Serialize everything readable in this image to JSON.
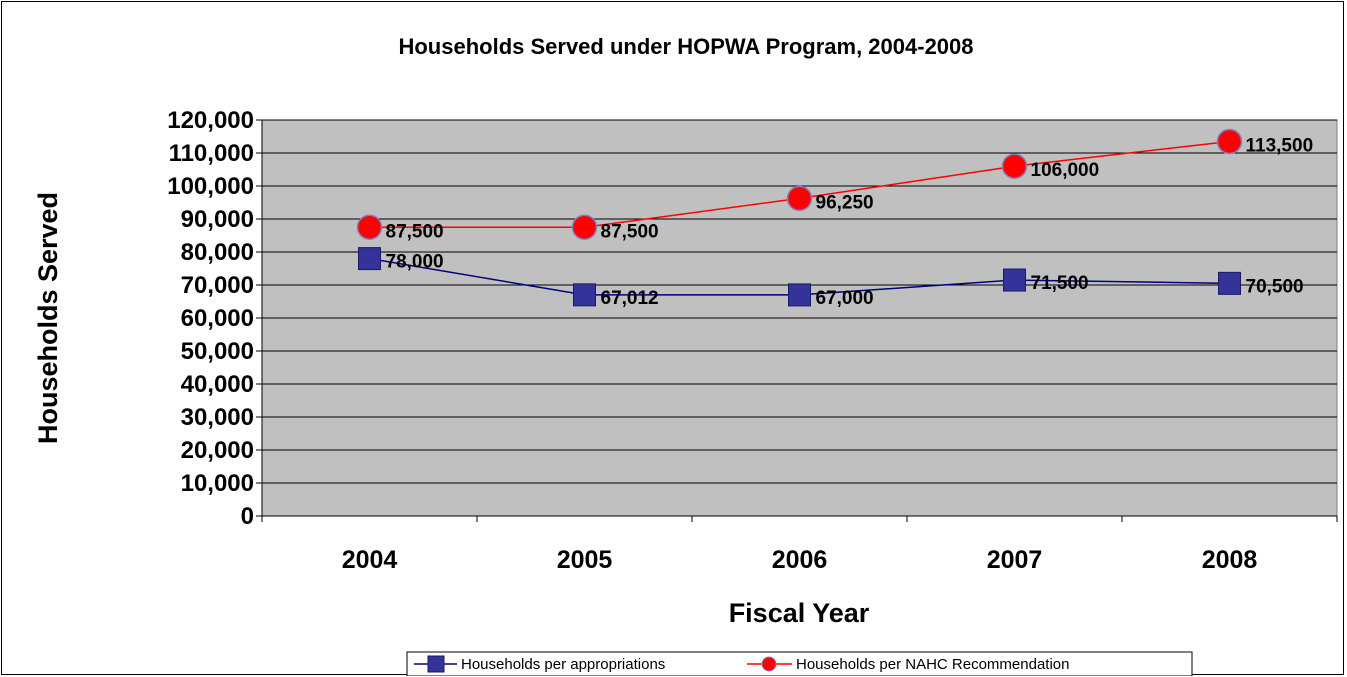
{
  "chart_data": {
    "type": "line",
    "title": "Households Served under HOPWA Program, 2004-2008",
    "xlabel": "Fiscal Year",
    "ylabel": "Households Served",
    "categories": [
      "2004",
      "2005",
      "2006",
      "2007",
      "2008"
    ],
    "ylim": [
      0,
      120000
    ],
    "yticks": [
      0,
      10000,
      20000,
      30000,
      40000,
      50000,
      60000,
      70000,
      80000,
      90000,
      100000,
      110000,
      120000
    ],
    "ytick_labels": [
      "0",
      "10,000",
      "20,000",
      "30,000",
      "40,000",
      "50,000",
      "60,000",
      "70,000",
      "80,000",
      "90,000",
      "100,000",
      "110,000",
      "120,000"
    ],
    "grid": true,
    "plot_background": "#c0c0c0",
    "legend_position": "bottom",
    "series": [
      {
        "name": "Households per appropriations",
        "values": [
          78000,
          67012,
          67000,
          71500,
          70500
        ],
        "labels": [
          "78,000",
          "67,012",
          "67,000",
          "71,500",
          "70,500"
        ],
        "color": "#000080",
        "marker": "square"
      },
      {
        "name": "Households per NAHC Recommendation",
        "values": [
          87500,
          87500,
          96250,
          106000,
          113500
        ],
        "labels": [
          "87,500",
          "87,500",
          "96,250",
          "106,000",
          "113,500"
        ],
        "color": "#ff0000",
        "marker": "circle"
      }
    ]
  }
}
